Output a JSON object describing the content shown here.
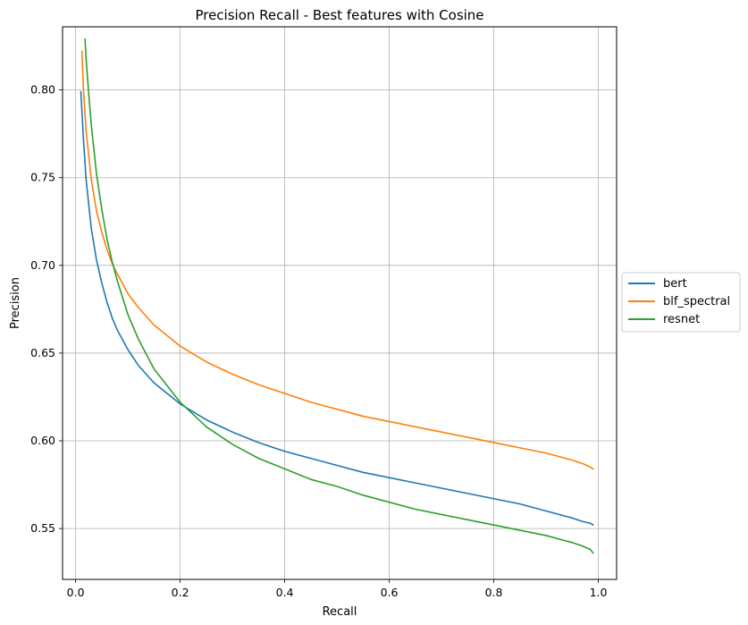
{
  "chart_data": {
    "type": "line",
    "title": "Precision Recall - Best features with Cosine",
    "xlabel": "Recall",
    "ylabel": "Precision",
    "xlim": [
      -0.025,
      1.035
    ],
    "ylim": [
      0.521,
      0.836
    ],
    "xticks": [
      0.0,
      0.2,
      0.4,
      0.6,
      0.8,
      1.0
    ],
    "xtick_labels": [
      "0.0",
      "0.2",
      "0.4",
      "0.6",
      "0.8",
      "1.0"
    ],
    "yticks": [
      0.55,
      0.6,
      0.65,
      0.7,
      0.75,
      0.8
    ],
    "ytick_labels": [
      "0.55",
      "0.60",
      "0.65",
      "0.70",
      "0.75",
      "0.80"
    ],
    "grid": true,
    "legend_position": "outside-right",
    "series": [
      {
        "name": "bert",
        "color": "#1f77b4",
        "x": [
          0.01,
          0.015,
          0.02,
          0.03,
          0.04,
          0.05,
          0.06,
          0.07,
          0.08,
          0.1,
          0.12,
          0.15,
          0.2,
          0.25,
          0.3,
          0.35,
          0.4,
          0.45,
          0.5,
          0.55,
          0.6,
          0.65,
          0.7,
          0.75,
          0.8,
          0.85,
          0.9,
          0.95,
          0.97,
          0.985,
          0.99
        ],
        "y": [
          0.799,
          0.772,
          0.749,
          0.721,
          0.703,
          0.69,
          0.679,
          0.67,
          0.663,
          0.652,
          0.643,
          0.633,
          0.621,
          0.612,
          0.605,
          0.599,
          0.594,
          0.59,
          0.586,
          0.582,
          0.579,
          0.576,
          0.573,
          0.57,
          0.567,
          0.564,
          0.56,
          0.556,
          0.554,
          0.553,
          0.552
        ]
      },
      {
        "name": "blf_spectral",
        "color": "#ff7f0e",
        "x": [
          0.012,
          0.015,
          0.02,
          0.03,
          0.04,
          0.05,
          0.06,
          0.07,
          0.08,
          0.1,
          0.12,
          0.15,
          0.2,
          0.25,
          0.3,
          0.35,
          0.4,
          0.45,
          0.5,
          0.55,
          0.6,
          0.65,
          0.7,
          0.75,
          0.8,
          0.85,
          0.9,
          0.95,
          0.97,
          0.985,
          0.99
        ],
        "y": [
          0.822,
          0.8,
          0.777,
          0.749,
          0.731,
          0.719,
          0.709,
          0.701,
          0.695,
          0.684,
          0.676,
          0.666,
          0.654,
          0.645,
          0.638,
          0.632,
          0.627,
          0.622,
          0.618,
          0.614,
          0.611,
          0.608,
          0.605,
          0.602,
          0.599,
          0.596,
          0.593,
          0.589,
          0.587,
          0.585,
          0.584
        ]
      },
      {
        "name": "resnet",
        "color": "#2ca02c",
        "x": [
          0.018,
          0.02,
          0.025,
          0.03,
          0.04,
          0.05,
          0.06,
          0.07,
          0.08,
          0.1,
          0.12,
          0.15,
          0.2,
          0.25,
          0.3,
          0.35,
          0.4,
          0.45,
          0.5,
          0.55,
          0.6,
          0.65,
          0.7,
          0.75,
          0.8,
          0.85,
          0.9,
          0.95,
          0.97,
          0.985,
          0.99
        ],
        "y": [
          0.829,
          0.818,
          0.798,
          0.78,
          0.752,
          0.732,
          0.715,
          0.702,
          0.691,
          0.672,
          0.658,
          0.641,
          0.622,
          0.608,
          0.598,
          0.59,
          0.584,
          0.578,
          0.574,
          0.569,
          0.565,
          0.561,
          0.558,
          0.555,
          0.552,
          0.549,
          0.546,
          0.542,
          0.54,
          0.538,
          0.536
        ]
      }
    ]
  }
}
